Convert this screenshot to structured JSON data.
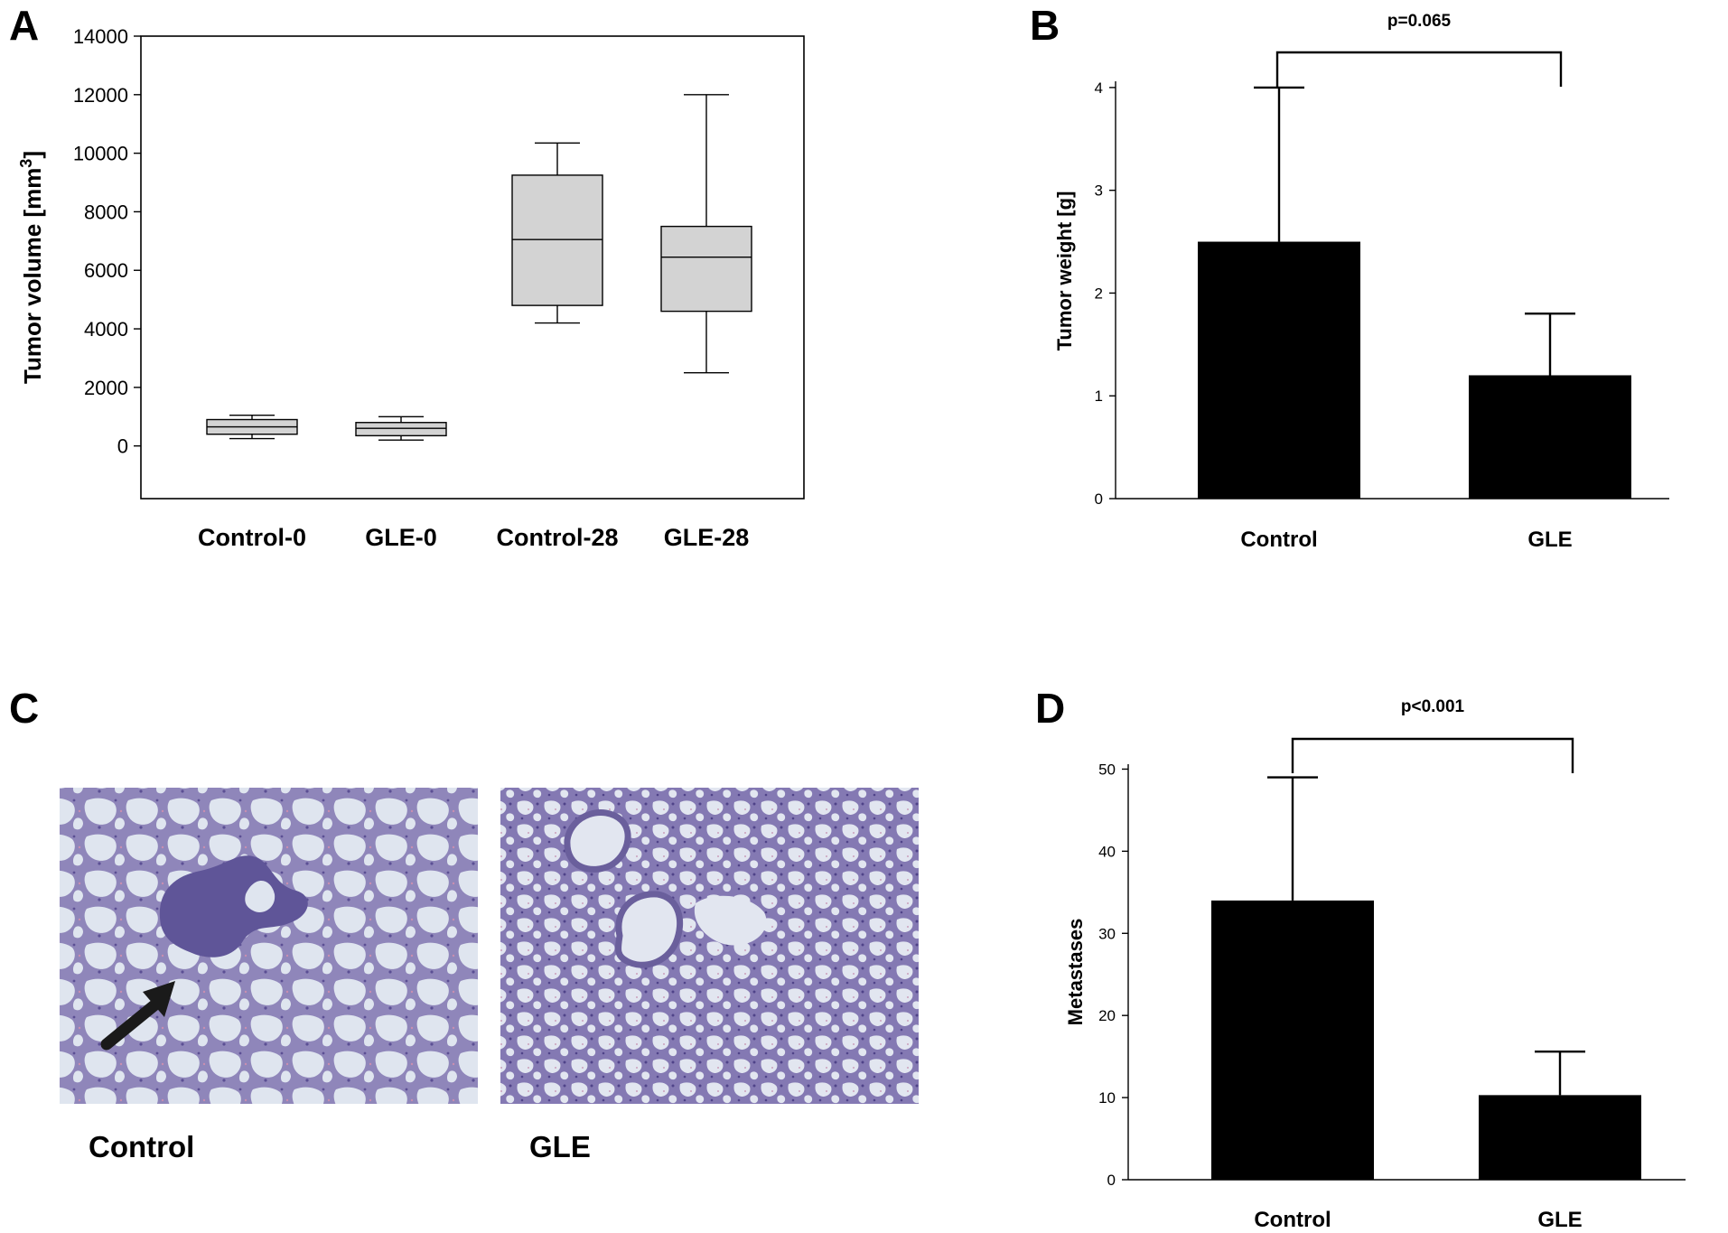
{
  "panels": {
    "A": {
      "letter": "A"
    },
    "B": {
      "letter": "B"
    },
    "C": {
      "letter": "C"
    },
    "D": {
      "letter": "D"
    }
  },
  "chart_data": [
    {
      "panel": "A",
      "type": "box",
      "ylabel": "Tumor volume [mm",
      "ylabel_sup": "3",
      "ylabel_close": "]",
      "ylim": [
        -1800,
        14000
      ],
      "yticks": [
        0,
        2000,
        4000,
        6000,
        8000,
        10000,
        12000,
        14000
      ],
      "categories": [
        "Control-0",
        "GLE-0",
        "Control-28",
        "GLE-28"
      ],
      "boxes": [
        {
          "min": 250,
          "q1": 400,
          "median": 650,
          "q3": 900,
          "max": 1050
        },
        {
          "min": 200,
          "q1": 350,
          "median": 600,
          "q3": 800,
          "max": 1000
        },
        {
          "min": 4200,
          "q1": 4800,
          "median": 7050,
          "q3": 9250,
          "max": 10350
        },
        {
          "min": 2500,
          "q1": 4600,
          "median": 6450,
          "q3": 7500,
          "max": 12000
        }
      ],
      "box_color": "#d3d3d3"
    },
    {
      "panel": "B",
      "type": "bar",
      "ylabel": "Tumor weight [g]",
      "ylim": [
        0,
        4.5
      ],
      "yticks": [
        0,
        1,
        2,
        3,
        4
      ],
      "categories": [
        "Control",
        "GLE"
      ],
      "values": [
        2.5,
        1.2
      ],
      "errors": [
        1.5,
        0.6
      ],
      "bar_color": "#000000",
      "significance": "p=0.065"
    },
    {
      "panel": "D",
      "type": "bar",
      "ylabel": "Metastases",
      "ylim": [
        0,
        55
      ],
      "yticks": [
        0,
        10,
        20,
        30,
        40,
        50
      ],
      "categories": [
        "Control",
        "GLE"
      ],
      "values": [
        34,
        10.3
      ],
      "errors": [
        15,
        5.3
      ],
      "bar_color": "#000000",
      "significance": "p<0.001"
    }
  ],
  "micrographs": {
    "control_label": "Control",
    "gle_label": "GLE"
  },
  "colors": {
    "tissue_bg": "#8c84b8",
    "alveolus": "#dde3ee",
    "arrow": "#1a1a1a"
  }
}
